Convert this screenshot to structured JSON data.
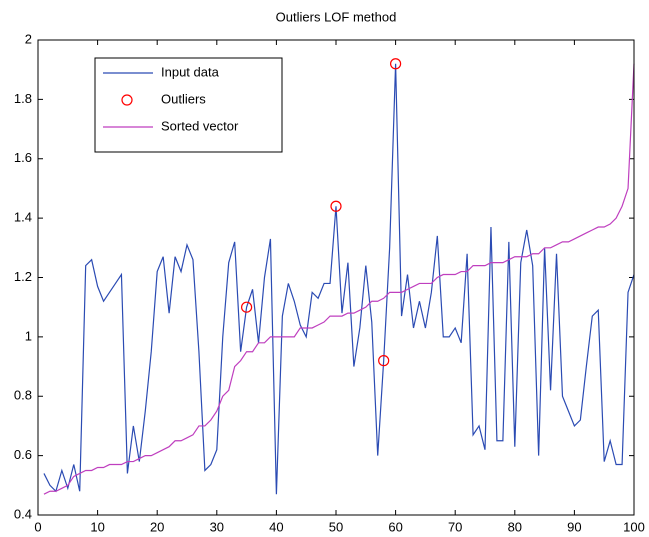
{
  "chart_data": {
    "type": "line",
    "title": "Outliers LOF method",
    "x": [
      1,
      2,
      3,
      4,
      5,
      6,
      7,
      8,
      9,
      10,
      11,
      12,
      13,
      14,
      15,
      16,
      17,
      18,
      19,
      20,
      21,
      22,
      23,
      24,
      25,
      26,
      27,
      28,
      29,
      30,
      31,
      32,
      33,
      34,
      35,
      36,
      37,
      38,
      39,
      40,
      41,
      42,
      43,
      44,
      45,
      46,
      47,
      48,
      49,
      50,
      51,
      52,
      53,
      54,
      55,
      56,
      57,
      58,
      59,
      60,
      61,
      62,
      63,
      64,
      65,
      66,
      67,
      68,
      69,
      70,
      71,
      72,
      73,
      74,
      75,
      76,
      77,
      78,
      79,
      80,
      81,
      82,
      83,
      84,
      85,
      86,
      87,
      88,
      89,
      90,
      91,
      92,
      93,
      94,
      95,
      96,
      97,
      98,
      99,
      100
    ],
    "series": [
      {
        "name": "Input data",
        "type": "line",
        "color": "#2b4bb3",
        "values": [
          0.54,
          0.5,
          0.48,
          0.55,
          0.49,
          0.57,
          0.48,
          1.24,
          1.26,
          1.17,
          1.12,
          1.15,
          1.18,
          1.21,
          0.54,
          0.7,
          0.58,
          0.75,
          0.95,
          1.22,
          1.27,
          1.08,
          1.27,
          1.22,
          1.31,
          1.26,
          0.95,
          0.55,
          0.57,
          0.62,
          1.0,
          1.25,
          1.32,
          0.95,
          1.1,
          1.16,
          0.98,
          1.2,
          1.33,
          0.47,
          1.07,
          1.18,
          1.12,
          1.04,
          1.0,
          1.15,
          1.13,
          1.18,
          1.18,
          1.44,
          1.08,
          1.25,
          0.9,
          1.03,
          1.24,
          1.05,
          0.6,
          0.92,
          1.3,
          1.92,
          1.07,
          1.21,
          1.03,
          1.12,
          1.03,
          1.15,
          1.34,
          1.0,
          1.0,
          1.03,
          0.98,
          1.28,
          0.67,
          0.7,
          0.62,
          1.37,
          0.65,
          0.65,
          1.32,
          0.63,
          1.25,
          1.36,
          1.24,
          0.6,
          1.3,
          0.82,
          1.28,
          0.8,
          0.75,
          0.7,
          0.72,
          0.9,
          1.07,
          1.09,
          0.58,
          0.65,
          0.57,
          0.57,
          1.15,
          1.21
        ]
      },
      {
        "name": "Outliers",
        "type": "scatter",
        "color": "#ff0000",
        "x": [
          35,
          50,
          58,
          60
        ],
        "values": [
          1.1,
          1.44,
          0.92,
          1.92
        ]
      },
      {
        "name": "Sorted vector",
        "type": "line",
        "color": "#bf3fbf",
        "values": [
          0.47,
          0.48,
          0.48,
          0.49,
          0.5,
          0.53,
          0.54,
          0.55,
          0.55,
          0.56,
          0.56,
          0.57,
          0.57,
          0.57,
          0.58,
          0.58,
          0.59,
          0.6,
          0.6,
          0.61,
          0.62,
          0.63,
          0.65,
          0.65,
          0.66,
          0.67,
          0.7,
          0.7,
          0.72,
          0.75,
          0.8,
          0.82,
          0.9,
          0.92,
          0.95,
          0.95,
          0.98,
          0.98,
          1.0,
          1.0,
          1.0,
          1.0,
          1.0,
          1.03,
          1.03,
          1.03,
          1.04,
          1.05,
          1.07,
          1.07,
          1.07,
          1.08,
          1.08,
          1.09,
          1.1,
          1.12,
          1.12,
          1.13,
          1.15,
          1.15,
          1.15,
          1.16,
          1.17,
          1.18,
          1.18,
          1.18,
          1.2,
          1.21,
          1.21,
          1.21,
          1.22,
          1.22,
          1.24,
          1.24,
          1.24,
          1.25,
          1.25,
          1.25,
          1.26,
          1.27,
          1.27,
          1.27,
          1.28,
          1.28,
          1.3,
          1.3,
          1.31,
          1.32,
          1.32,
          1.33,
          1.34,
          1.35,
          1.36,
          1.37,
          1.37,
          1.38,
          1.4,
          1.44,
          1.5,
          1.92
        ]
      }
    ],
    "xlim": [
      0,
      100
    ],
    "xticks": [
      0,
      10,
      20,
      30,
      40,
      50,
      60,
      70,
      80,
      90,
      100
    ],
    "ylim": [
      0.4,
      2
    ],
    "yticks": [
      0.4,
      0.6,
      0.8,
      1,
      1.2,
      1.4,
      1.6,
      1.8,
      2
    ],
    "grid": false,
    "legend": "upper left"
  }
}
